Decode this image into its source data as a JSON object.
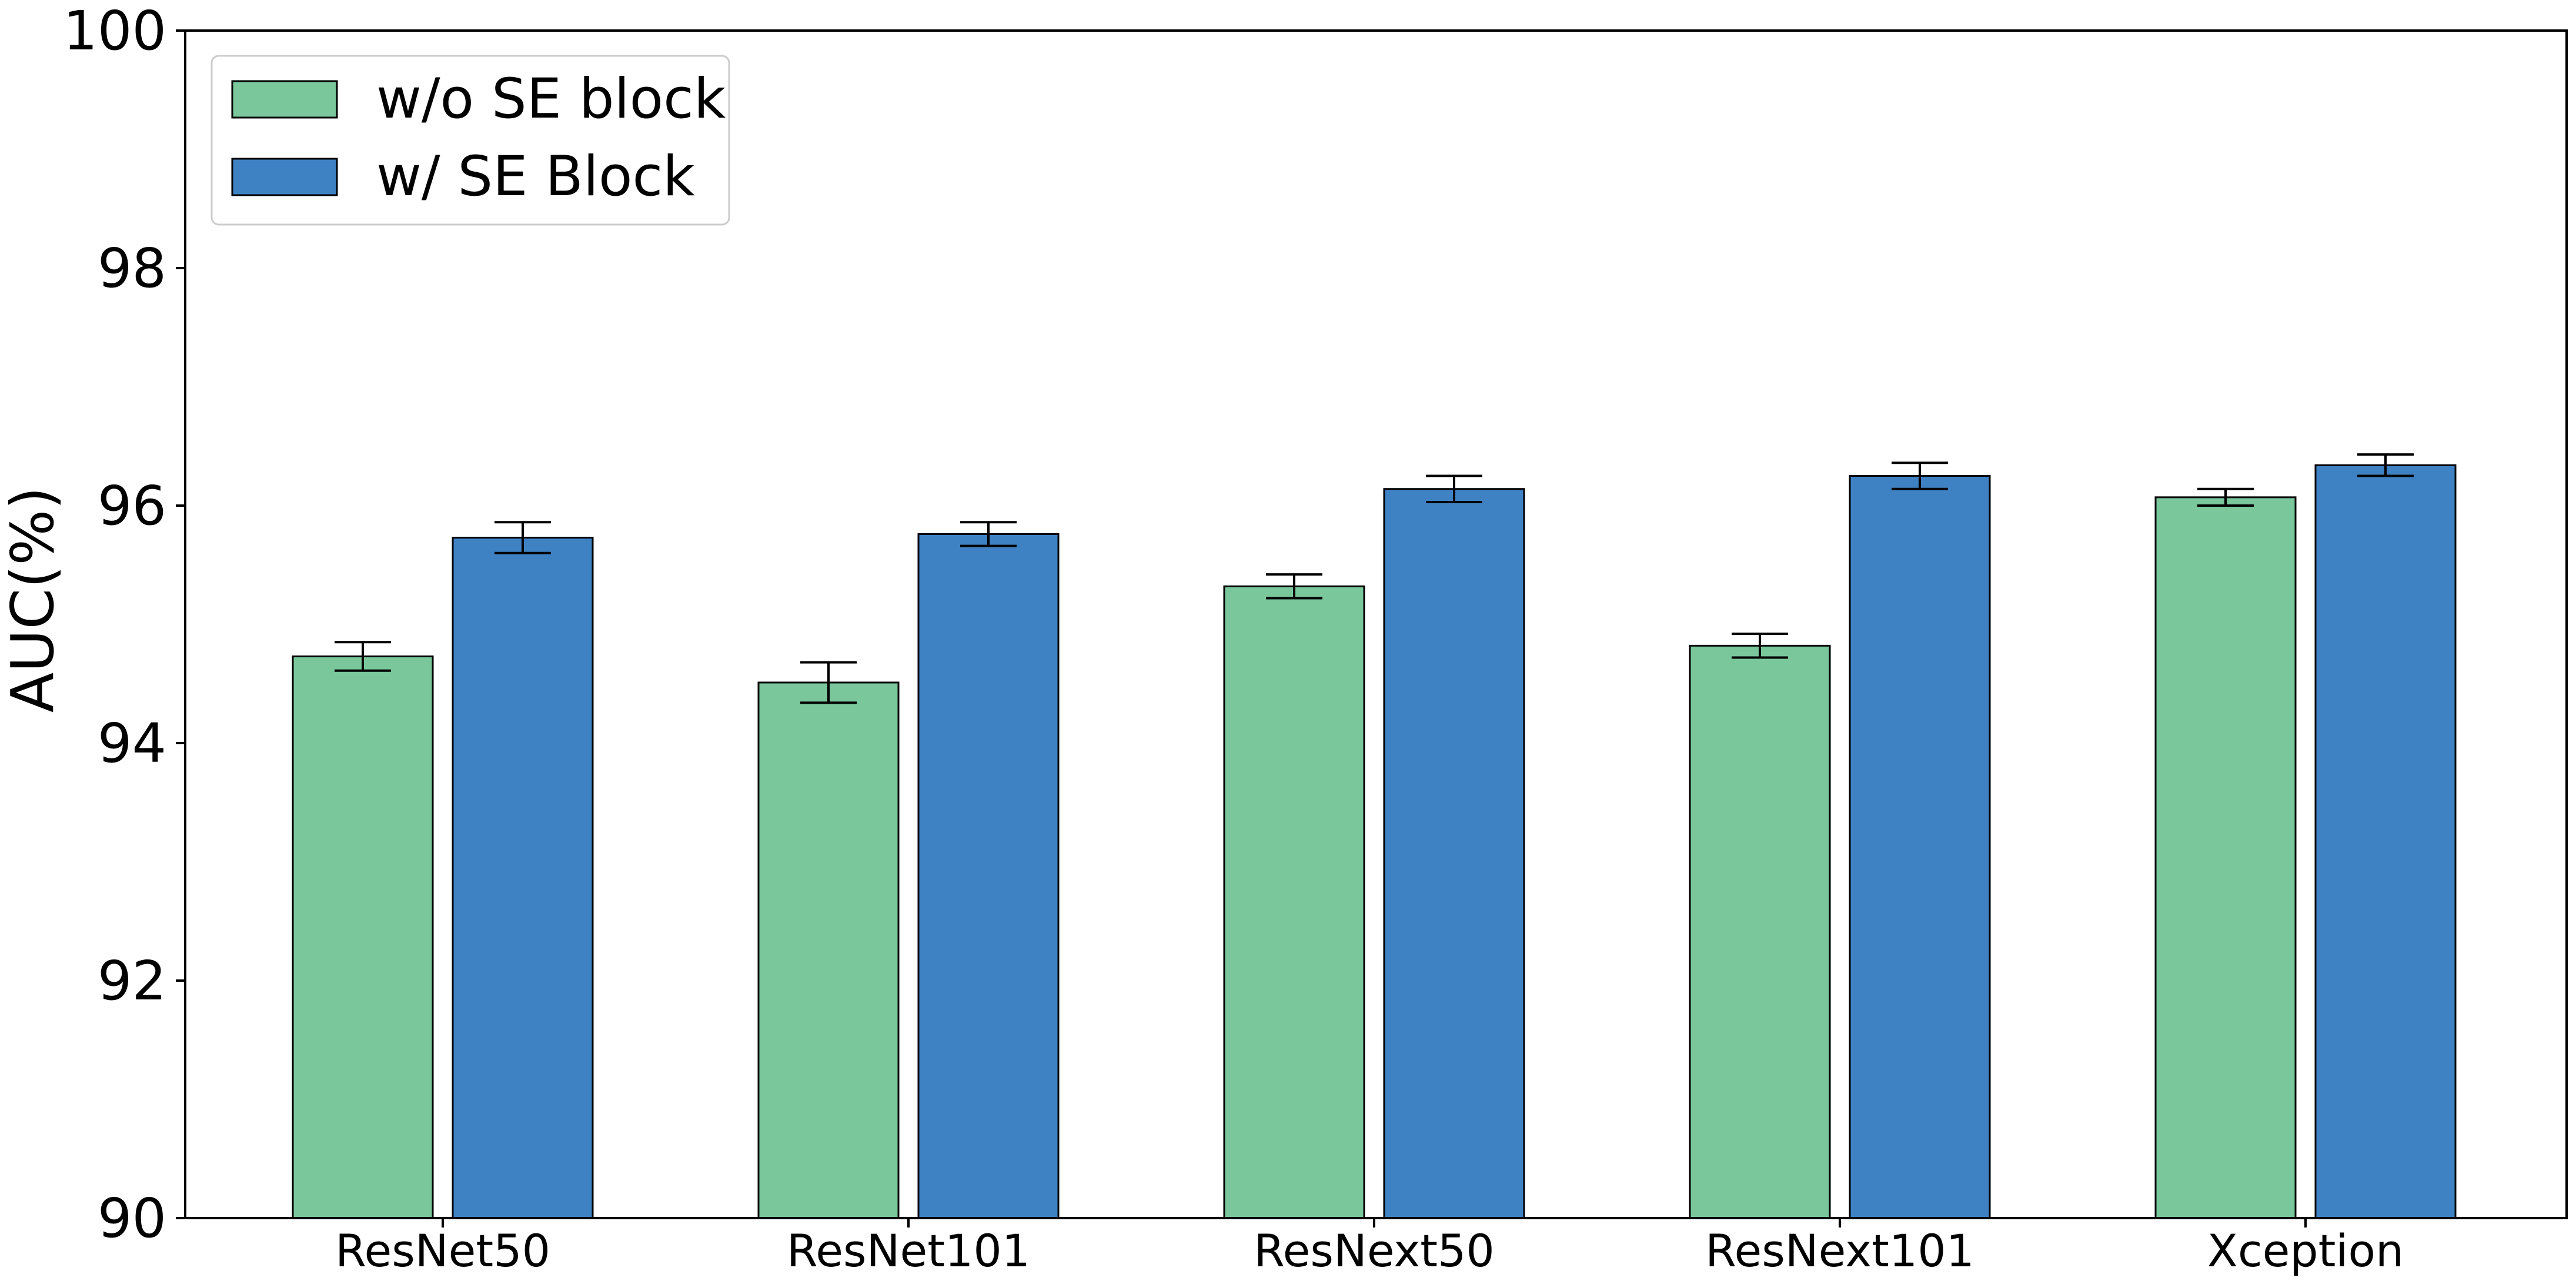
{
  "chart_data": {
    "type": "bar",
    "title": "",
    "xlabel": "",
    "ylabel": "AUC(%)",
    "ylim": [
      90,
      100
    ],
    "yticks": [
      "90",
      "92",
      "94",
      "96",
      "98",
      "100"
    ],
    "categories": [
      "ResNet50",
      "ResNet101",
      "ResNext50",
      "ResNext101",
      "Xception"
    ],
    "series": [
      {
        "name": "w/o SE block",
        "color": "#79C79B",
        "values": [
          94.73,
          94.51,
          95.32,
          94.82,
          96.07
        ],
        "errors": [
          0.12,
          0.17,
          0.1,
          0.1,
          0.07
        ]
      },
      {
        "name": "w/ SE Block",
        "color": "#3F82C4",
        "values": [
          95.73,
          95.76,
          96.14,
          96.25,
          96.34
        ],
        "errors": [
          0.13,
          0.1,
          0.11,
          0.11,
          0.09
        ]
      }
    ],
    "grid": false,
    "legend_position": "top-left"
  }
}
